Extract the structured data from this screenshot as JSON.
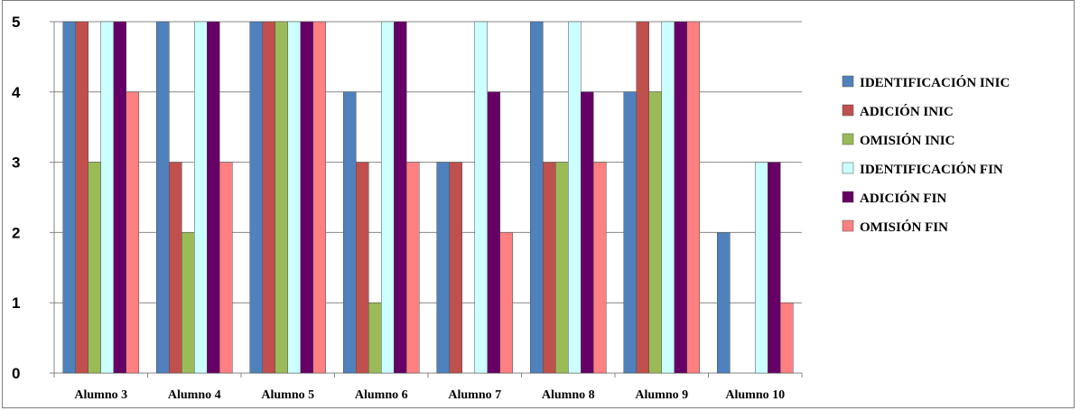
{
  "chart_data": {
    "type": "bar",
    "categories": [
      "Alumno 3",
      "Alumno 4",
      "Alumno 5",
      "Alumno 6",
      "Alumno 7",
      "Alumno 8",
      "Alumno 9",
      "Alumno 10"
    ],
    "series": [
      {
        "name": "IDENTIFICACIÓN INIC",
        "color": "#4f81bd",
        "values": [
          5,
          5,
          5,
          4,
          3,
          5,
          4,
          2
        ]
      },
      {
        "name": "ADICIÓN INIC",
        "color": "#c0504d",
        "values": [
          5,
          3,
          5,
          3,
          3,
          3,
          5,
          0
        ]
      },
      {
        "name": "OMISIÓN INIC",
        "color": "#9bbb59",
        "values": [
          3,
          2,
          5,
          1,
          0,
          3,
          4,
          0
        ]
      },
      {
        "name": "IDENTIFICACIÓN  FIN",
        "color": "#ccffff",
        "values": [
          5,
          5,
          5,
          5,
          5,
          5,
          5,
          3
        ]
      },
      {
        "name": "ADICIÓN FIN",
        "color": "#660066",
        "values": [
          5,
          5,
          5,
          5,
          4,
          4,
          5,
          3
        ]
      },
      {
        "name": "OMISIÓN FIN",
        "color": "#ff8080",
        "values": [
          4,
          3,
          5,
          3,
          2,
          3,
          5,
          1
        ]
      }
    ],
    "title": "",
    "xlabel": "",
    "ylabel": "",
    "ylim": [
      0,
      5
    ],
    "yticks": [
      "0",
      "1",
      "2",
      "3",
      "4",
      "5"
    ],
    "grid": true,
    "legend_position": "right"
  }
}
